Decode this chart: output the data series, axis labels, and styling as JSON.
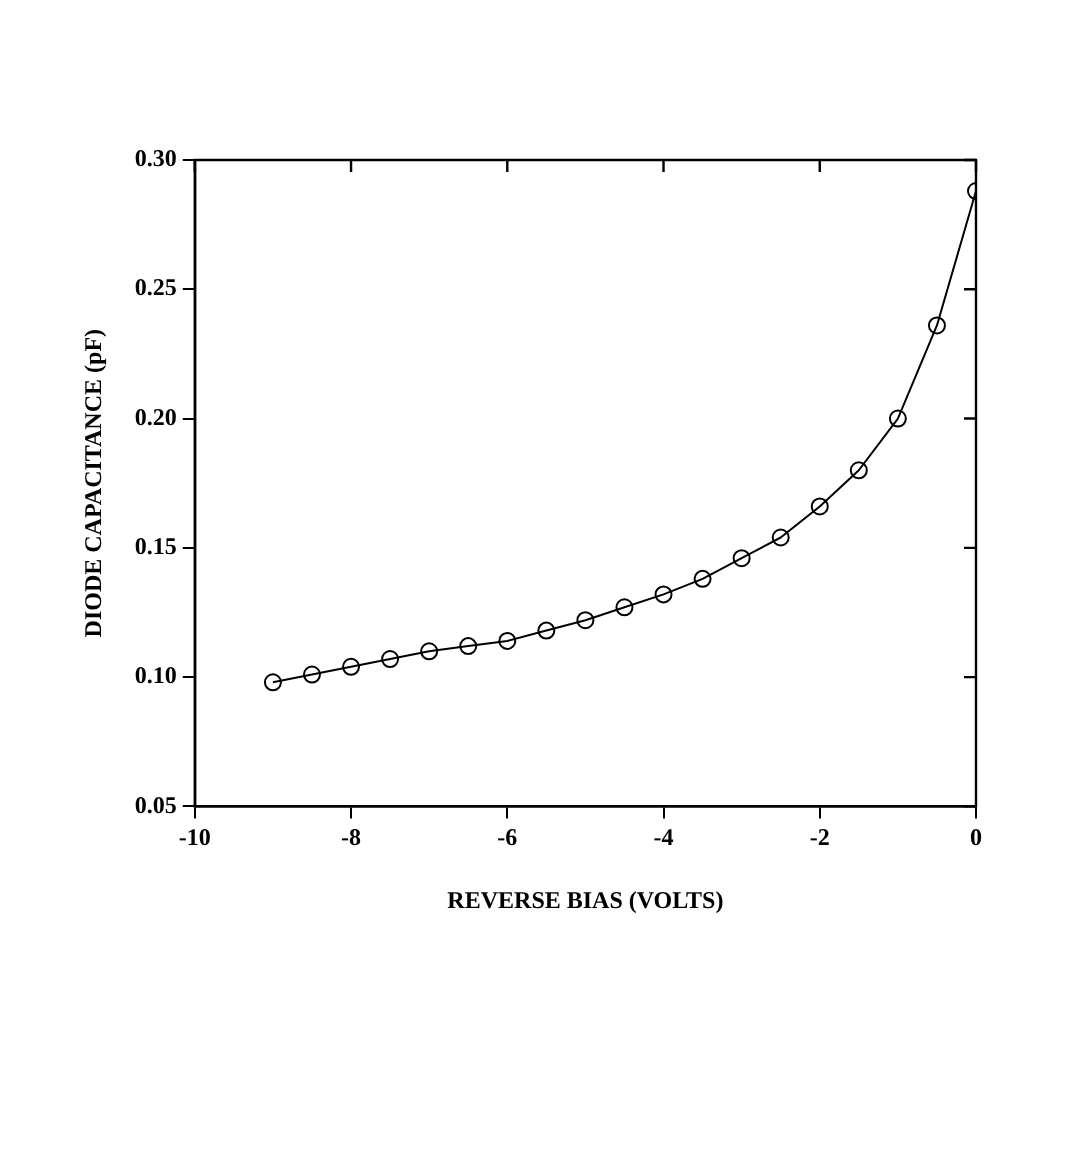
{
  "chart_data": {
    "type": "line",
    "xlabel": "REVERSE BIAS (VOLTS)",
    "ylabel": "DIODE CAPACITANCE (pF)",
    "x": [
      -9,
      -8.5,
      -8,
      -7.5,
      -7,
      -6.5,
      -6,
      -5.5,
      -5,
      -4.5,
      -4,
      -3.5,
      -3,
      -2.5,
      -2,
      -1.5,
      -1,
      -0.5,
      0
    ],
    "series": [
      {
        "color": "#000000",
        "values": [
          0.098,
          0.101,
          0.104,
          0.107,
          0.11,
          0.112,
          0.114,
          0.118,
          0.122,
          0.127,
          0.132,
          0.138,
          0.146,
          0.154,
          0.166,
          0.18,
          0.2,
          0.236,
          0.288
        ]
      }
    ],
    "xlim": [
      -10,
      0
    ],
    "xticks": [
      -10,
      -8,
      -6,
      -4,
      -2,
      0
    ],
    "ylim": [
      0.05,
      0.3
    ],
    "yticks": [
      {
        "value": 0.05,
        "label": "0.05"
      },
      {
        "value": 0.1,
        "label": "0.10"
      },
      {
        "value": 0.15,
        "label": "0.15"
      },
      {
        "value": 0.2,
        "label": "0.20"
      },
      {
        "value": 0.25,
        "label": "0.25"
      },
      {
        "value": 0.3,
        "label": "0.30"
      }
    ],
    "grid": false,
    "legend": false,
    "marker": "circle",
    "line_style": "solid"
  }
}
